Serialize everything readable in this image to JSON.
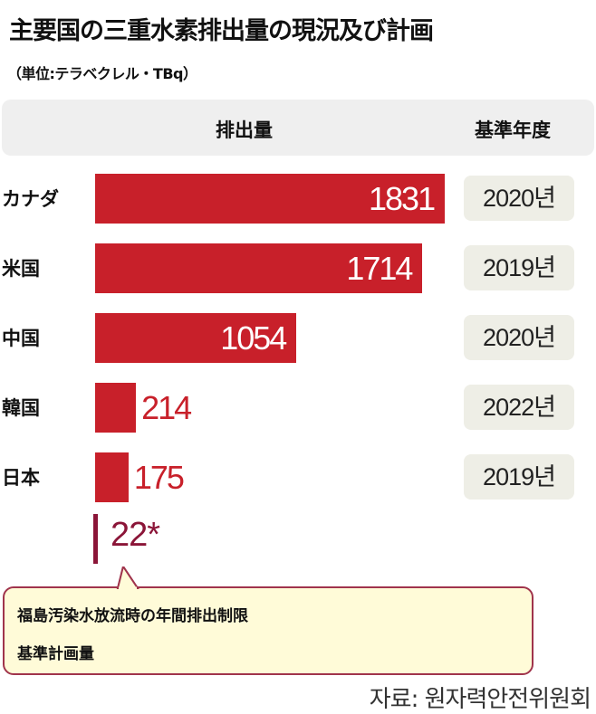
{
  "title": "主要国の三重水素排出量の現況及び計画",
  "unit": "（単位:テラベクレル・TBq）",
  "header": {
    "emission": "排出量",
    "base_year": "基準年度"
  },
  "chart_data": {
    "type": "bar",
    "orientation": "horizontal",
    "title": "主要国の三重水素排出量の現況及び計画",
    "xlabel": "排出量",
    "ylabel": "",
    "categories": [
      "カナダ",
      "米国",
      "中国",
      "韓国",
      "日本"
    ],
    "values": [
      1831,
      1714,
      1054,
      214,
      175
    ],
    "value_labels": [
      "1831",
      "1714",
      "1054",
      "214",
      "175"
    ],
    "base_years": [
      "2020년",
      "2019년",
      "2020년",
      "2022년",
      "2019년"
    ],
    "xlim": [
      0,
      1831
    ],
    "bar_color": "#c8202a",
    "reference": {
      "value": 22,
      "label": "22*",
      "color": "#8b1538"
    }
  },
  "callout": {
    "line1": "福島汚染水放流時の年間排出制限",
    "line2": "基準計画量"
  },
  "source": "자료: 원자력안전위원회"
}
